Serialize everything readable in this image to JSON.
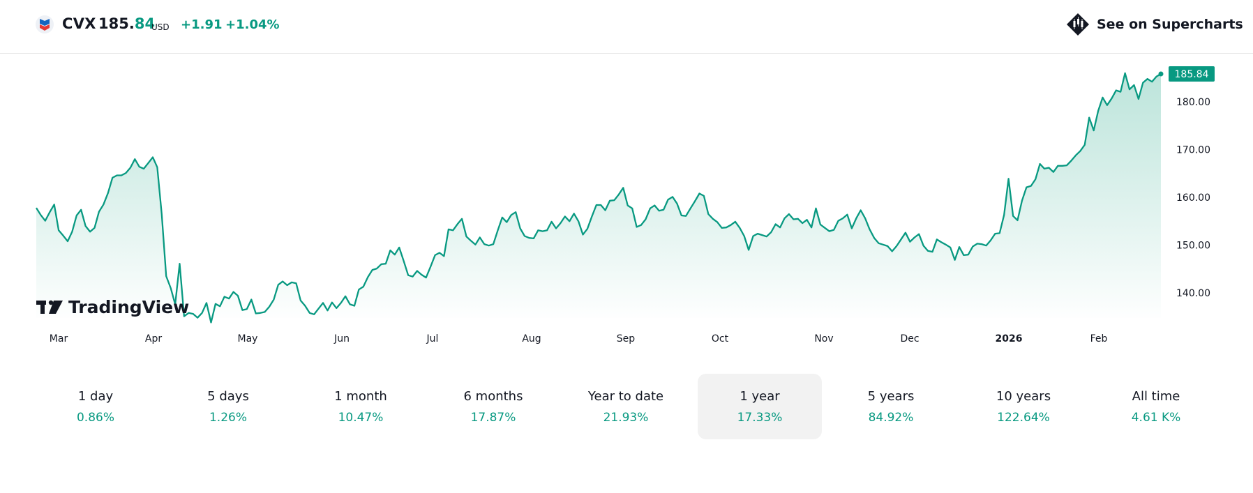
{
  "header": {
    "symbol": "CVX",
    "price_int": "185.",
    "price_dec": "84",
    "currency": "USD",
    "change_abs": "+1.91",
    "change_pct": "+1.04%",
    "supercharts_label": "See on Supercharts",
    "logo_icon": "chevron-logo-icon",
    "supercharts_icon": "tradingview-candle-icon"
  },
  "colors": {
    "accent": "#089981",
    "fill_top": "#b9e3d9",
    "fill_bottom": "#ffffff",
    "text": "#131722",
    "active_bg": "#f2f2f2"
  },
  "watermark": "TradingView",
  "chart_data": {
    "type": "area",
    "x_labels": [
      "Mar",
      "Apr",
      "May",
      "Jun",
      "Jul",
      "Aug",
      "Sep",
      "Oct",
      "Nov",
      "Dec",
      "2026",
      "Feb"
    ],
    "y_ticks": [
      140,
      150,
      160,
      170,
      180
    ],
    "y_tick_labels": [
      "140.00",
      "150.00",
      "160.00",
      "170.00",
      "180.00"
    ],
    "ylim": [
      134,
      189
    ],
    "last_value": 185.84,
    "last_value_label": "185.84",
    "grid": false,
    "values": [
      157.8,
      156.3,
      155.1,
      156.9,
      158.5,
      153.1,
      152.0,
      150.8,
      152.8,
      156.2,
      157.4,
      154.0,
      152.8,
      153.6,
      157.0,
      158.5,
      160.9,
      164.1,
      164.6,
      164.6,
      165.1,
      166.2,
      168.0,
      166.4,
      166.0,
      167.2,
      168.4,
      166.3,
      156.5,
      143.5,
      141.0,
      137.6,
      146.1,
      135.1,
      135.8,
      135.6,
      134.8,
      135.8,
      137.9,
      133.8,
      137.7,
      137.2,
      139.2,
      138.8,
      140.2,
      139.4,
      136.4,
      136.6,
      138.6,
      135.7,
      135.8,
      136.0,
      137.1,
      138.6,
      141.7,
      142.4,
      141.6,
      142.2,
      142.0,
      138.4,
      137.3,
      135.8,
      135.5,
      136.7,
      137.9,
      136.3,
      138.0,
      136.8,
      137.9,
      139.3,
      137.6,
      137.3,
      140.7,
      141.3,
      143.3,
      144.8,
      145.1,
      146.0,
      146.1,
      148.9,
      148.0,
      149.5,
      146.7,
      143.7,
      143.4,
      144.6,
      143.8,
      143.2,
      145.5,
      147.9,
      148.4,
      147.7,
      153.3,
      153.1,
      154.4,
      155.5,
      151.8,
      150.9,
      150.1,
      151.6,
      150.2,
      149.9,
      150.2,
      153.1,
      155.8,
      154.8,
      156.3,
      156.9,
      153.5,
      151.9,
      151.5,
      151.4,
      153.1,
      152.9,
      153.1,
      154.9,
      153.5,
      154.6,
      156.0,
      155.0,
      156.6,
      155.0,
      152.2,
      153.4,
      156.0,
      158.4,
      158.4,
      157.3,
      159.3,
      159.4,
      160.6,
      162.0,
      158.3,
      157.7,
      153.8,
      154.2,
      155.4,
      157.7,
      158.3,
      157.2,
      157.4,
      159.5,
      160.1,
      158.7,
      156.2,
      156.1,
      157.7,
      159.2,
      160.8,
      160.3,
      156.5,
      155.5,
      154.8,
      153.6,
      153.7,
      154.2,
      154.9,
      153.6,
      151.9,
      149.0,
      151.9,
      152.4,
      152.1,
      151.8,
      152.7,
      154.4,
      153.7,
      155.6,
      156.5,
      155.4,
      155.5,
      154.6,
      155.3,
      153.7,
      157.7,
      154.3,
      153.6,
      152.9,
      153.2,
      155.1,
      155.6,
      156.4,
      153.5,
      155.6,
      157.3,
      155.6,
      153.3,
      151.5,
      150.4,
      150.1,
      149.8,
      148.7,
      149.8,
      151.2,
      152.6,
      150.7,
      151.6,
      152.3,
      149.9,
      148.8,
      148.6,
      151.2,
      150.6,
      150.1,
      149.5,
      146.9,
      149.6,
      147.9,
      148.0,
      149.7,
      150.3,
      150.2,
      149.9,
      151.0,
      152.4,
      152.5,
      156.3,
      163.9,
      156.1,
      155.2,
      159.3,
      162.1,
      162.4,
      163.8,
      167.0,
      166.0,
      166.2,
      165.3,
      166.6,
      166.6,
      166.7,
      167.7,
      168.8,
      169.7,
      171.0,
      176.7,
      174.0,
      178.1,
      180.9,
      179.3,
      180.7,
      182.4,
      182.1,
      186.0,
      182.6,
      183.5,
      180.6,
      184.0,
      184.8,
      184.2,
      185.3,
      185.84
    ]
  },
  "ranges": [
    {
      "label": "1 day",
      "value": "0.86%"
    },
    {
      "label": "5 days",
      "value": "1.26%"
    },
    {
      "label": "1 month",
      "value": "10.47%"
    },
    {
      "label": "6 months",
      "value": "17.87%"
    },
    {
      "label": "Year to date",
      "value": "21.93%"
    },
    {
      "label": "1 year",
      "value": "17.33%"
    },
    {
      "label": "5 years",
      "value": "84.92%"
    },
    {
      "label": "10 years",
      "value": "122.64%"
    },
    {
      "label": "All time",
      "value": "4.61 K%"
    }
  ],
  "active_range": "1 year"
}
